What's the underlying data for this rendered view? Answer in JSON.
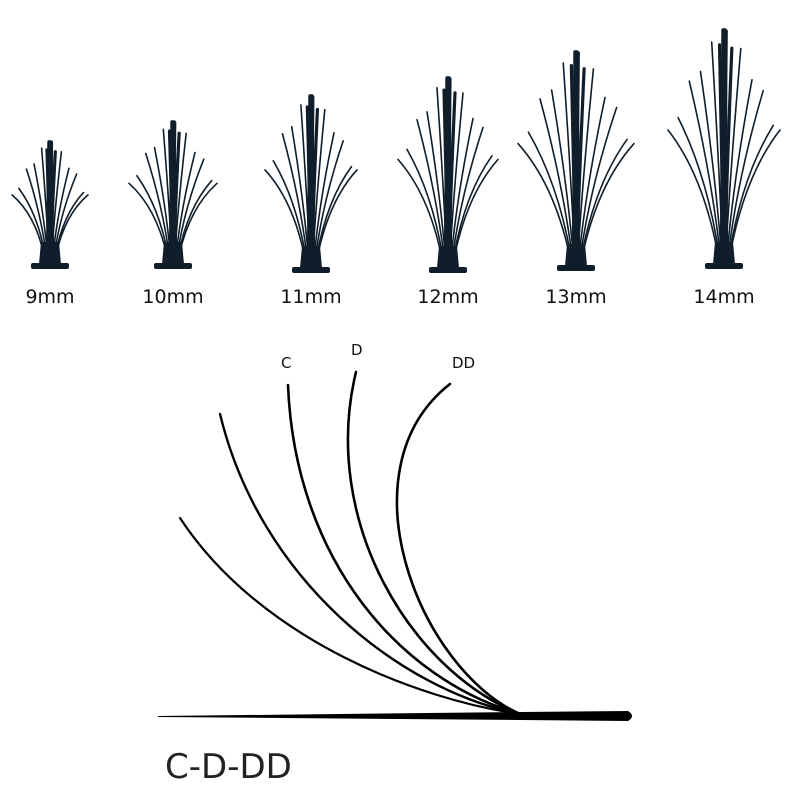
{
  "colors": {
    "lash": "#0f1e2a",
    "text": "#111111"
  },
  "lash_clusters": [
    {
      "label": "9mm",
      "length_mm": 9
    },
    {
      "label": "10mm",
      "length_mm": 10
    },
    {
      "label": "11mm",
      "length_mm": 11
    },
    {
      "label": "12mm",
      "length_mm": 12
    },
    {
      "label": "13mm",
      "length_mm": 13
    },
    {
      "label": "14mm",
      "length_mm": 14
    }
  ],
  "curls": [
    {
      "label": "C"
    },
    {
      "label": "D"
    },
    {
      "label": "DD"
    }
  ],
  "caption": "C-D-DD"
}
